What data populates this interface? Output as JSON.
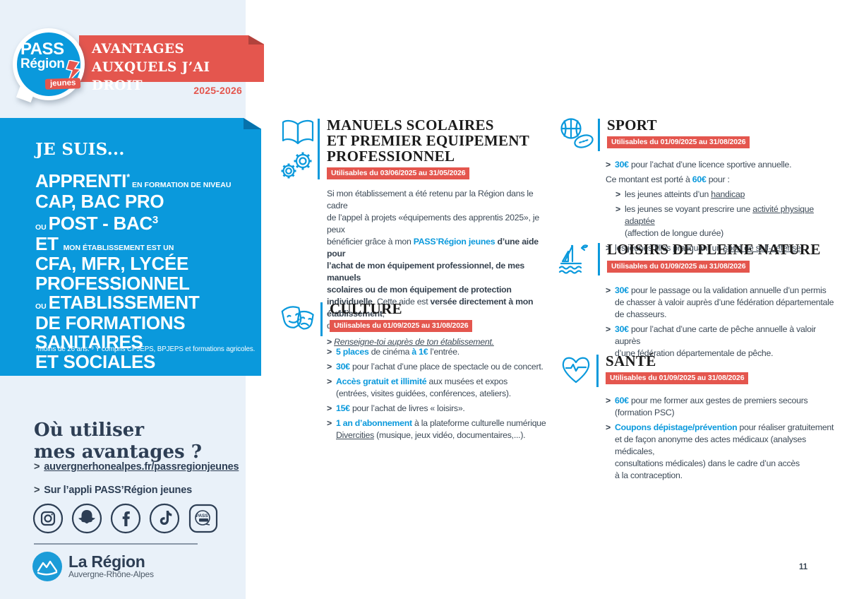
{
  "ui": {
    "bullet": ">"
  },
  "colors": {
    "primary_blue": "#0a99dc",
    "accent_red": "#e4564e",
    "navy_text": "#2d3e54",
    "panel_light": "#e9f1f9",
    "fold_red": "#b2423c",
    "fold_blue": "#0671ab"
  },
  "logo": {
    "line1": "PASS",
    "line2": "Région",
    "badge": "jeunes"
  },
  "banner": {
    "title": "AVANTAGES\nAUXQUELS J’AI DROIT",
    "season": "2025-2026"
  },
  "left_panel": {
    "intro": "JE SUIS...",
    "lines": [
      [
        {
          "t": "APPRENTI",
          "cls": "big"
        },
        {
          "t": "*",
          "cls": "sup"
        },
        {
          "t": " EN FORMATION DE NIVEAU",
          "cls": "small"
        }
      ],
      [
        {
          "t": "CAP, BAC PRO",
          "cls": "big"
        }
      ],
      [
        {
          "t": "OU ",
          "cls": "small"
        },
        {
          "t": "POST - BAC",
          "cls": "big"
        },
        {
          "t": "3",
          "cls": "sup3"
        }
      ],
      [
        {
          "t": "ET ",
          "cls": "big"
        },
        {
          "t": "MON ÉTABLISSEMENT EST UN",
          "cls": "small"
        }
      ],
      [
        {
          "t": "CFA, MFR, LYCÉE",
          "cls": "big"
        }
      ],
      [
        {
          "t": "PROFESSIONNEL",
          "cls": "big"
        }
      ],
      [
        {
          "t": "OU ",
          "cls": "small"
        },
        {
          "t": "ETABLISSEMENT",
          "cls": "big"
        }
      ],
      [
        {
          "t": "DE FORMATIONS",
          "cls": "big"
        }
      ],
      [
        {
          "t": "SANITAIRES",
          "cls": "big"
        }
      ],
      [
        {
          "t": "ET SOCIALES",
          "cls": "big"
        }
      ]
    ],
    "footnote": "*moins de 26 ans. ³ Y compris CPJEPS, BPJEPS et formations agricoles."
  },
  "where": {
    "title": "Où utiliser\nmes avantages ?",
    "link_web": "auvergnerhonealpes.fr/passregionjeunes",
    "link_app": "Sur l’appli PASS’Région jeunes",
    "social_icons": [
      "instagram-icon",
      "snapchat-icon",
      "facebook-icon",
      "tiktok-icon",
      "pass-region-app-icon"
    ]
  },
  "region_logo": {
    "name": "La Région",
    "subtitle": "Auvergne-Rhône-Alpes"
  },
  "sections": {
    "manuels": {
      "title": "MANUELS SCOLAIRES\nET PREMIER EQUIPEMENT\nPROFESSIONNEL",
      "validity": "Utilisables du 03/06/2025 au 31/05/2026",
      "paragraph": [
        {
          "t": "Si mon établissement a été retenu par la Région dans le cadre\nde l’appel à projets «équipements des apprentis 2025», je peux\nbénéficier grâce à mon "
        },
        {
          "t": "PASS’Région jeunes",
          "cls": "hl"
        },
        {
          "t": " ",
          "cls": ""
        },
        {
          "t": "d’une aide pour\nl’achat de mon équipement professionnel, de mes manuels\nscolaires ou de mon équipement de protection individuelle",
          "cls": "b"
        },
        {
          "t": ". Cette aide est "
        },
        {
          "t": "versée directement à mon établissement",
          "cls": "b"
        },
        {
          "t": ",\nqui se charge d’acheter mon matériel."
        }
      ],
      "link": [
        {
          "t": "Renseigne-toi auprès de ton établissement.",
          "cls": "it u"
        }
      ]
    },
    "culture": {
      "title": "CULTURE",
      "validity": "Utilisables du 01/09/2025 au 31/08/2026",
      "items": [
        [
          {
            "t": "5 places",
            "cls": "hl"
          },
          {
            "t": " de cinéma "
          },
          {
            "t": "à 1€",
            "cls": "hl"
          },
          {
            "t": " l’entrée."
          }
        ],
        [
          {
            "t": "30€",
            "cls": "hl"
          },
          {
            "t": " pour l’achat d’une place de spectacle ou de concert."
          }
        ],
        [
          {
            "t": "Accès gratuit et illimité",
            "cls": "hl"
          },
          {
            "t": " aux musées et expos\n(entrées, visites guidées, conférences, ateliers)."
          }
        ],
        [
          {
            "t": "15€",
            "cls": "hl"
          },
          {
            "t": " pour l’achat de livres « loisirs»."
          }
        ],
        [
          {
            "t": "1 an d’abonnement",
            "cls": "hl"
          },
          {
            "t": " à la plateforme culturelle numérique\n"
          },
          {
            "t": "Divercities",
            "cls": "u"
          },
          {
            "t": " (musique, jeux vidéo, documentaires,...)."
          }
        ]
      ]
    },
    "sport": {
      "title": "SPORT",
      "validity": "Utilisables du 01/09/2025 au 31/08/2026",
      "b1": [
        {
          "t": "30€",
          "cls": "hl"
        },
        {
          "t": " pour l’achat d’une licence sportive annuelle."
        }
      ],
      "intro2": [
        {
          "t": "Ce montant est porté à "
        },
        {
          "t": "60€",
          "cls": "hl"
        },
        {
          "t": " pour :"
        }
      ],
      "sub1": [
        {
          "t": "les jeunes atteints d’un "
        },
        {
          "t": "handicap",
          "cls": "u"
        }
      ],
      "sub2": [
        {
          "t": "les jeunes se voyant prescrire une "
        },
        {
          "t": "activité physique adaptée",
          "cls": "u"
        },
        {
          "t": "\n(affection de longue durée)"
        }
      ],
      "b2": [
        {
          "t": "les jeunes filles pratiquant un "
        },
        {
          "t": "sport de self-défense",
          "cls": "u"
        }
      ]
    },
    "nature": {
      "title": "LOISIRS DE PLEINE NATURE",
      "validity": "Utilisables du 01/09/2025 au 31/08/2026",
      "items": [
        [
          {
            "t": "30€",
            "cls": "hl"
          },
          {
            "t": " pour le passage ou la validation annuelle d’un permis\nde chasser à valoir auprès d’une fédération départementale\nde chasseurs."
          }
        ],
        [
          {
            "t": "30€",
            "cls": "hl"
          },
          {
            "t": " pour l’achat d’une carte de pêche annuelle à valoir auprès\nd’une fédération départementale de pêche."
          }
        ]
      ]
    },
    "sante": {
      "title": "SANTÉ",
      "validity": "Utilisables du 01/09/2025 au 31/08/2026",
      "items": [
        [
          {
            "t": "60€",
            "cls": "hl"
          },
          {
            "t": " pour me former aux gestes de premiers secours\n(formation PSC)"
          }
        ],
        [
          {
            "t": "Coupons dépistage/prévention",
            "cls": "hl"
          },
          {
            "t": " pour réaliser gratuitement\net de façon anonyme des actes médicaux (analyses médicales,\nconsultations médicales) dans le cadre d’un accès\nà la contraception."
          }
        ]
      ]
    }
  },
  "page_number": "11"
}
